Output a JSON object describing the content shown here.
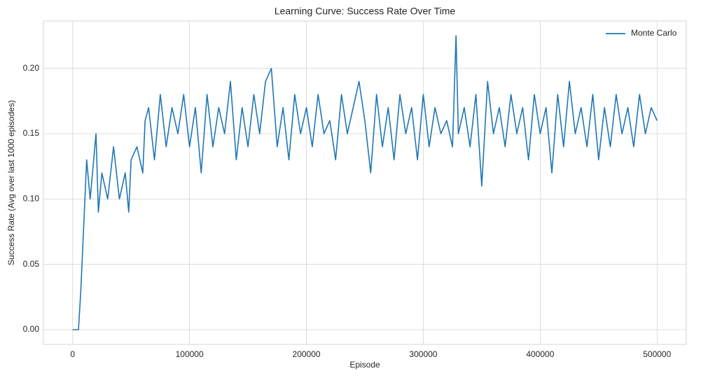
{
  "chart_data": {
    "type": "line",
    "title": "Learning Curve: Success Rate Over Time",
    "xlabel": "Episode",
    "ylabel": "Success Rate (Avg over last 1000 episodes)",
    "x": [
      0,
      5000,
      7000,
      10000,
      12000,
      15000,
      20000,
      22000,
      25000,
      30000,
      35000,
      40000,
      45000,
      48000,
      50000,
      55000,
      60000,
      62000,
      65000,
      70000,
      75000,
      80000,
      85000,
      90000,
      95000,
      100000,
      105000,
      110000,
      115000,
      120000,
      125000,
      130000,
      135000,
      140000,
      145000,
      150000,
      155000,
      160000,
      165000,
      170000,
      175000,
      180000,
      185000,
      190000,
      195000,
      200000,
      205000,
      210000,
      215000,
      220000,
      225000,
      230000,
      235000,
      240000,
      245000,
      250000,
      255000,
      260000,
      265000,
      270000,
      275000,
      280000,
      285000,
      290000,
      295000,
      300000,
      305000,
      310000,
      315000,
      320000,
      325000,
      328000,
      330000,
      335000,
      340000,
      345000,
      350000,
      355000,
      360000,
      365000,
      370000,
      375000,
      380000,
      385000,
      390000,
      395000,
      400000,
      405000,
      410000,
      415000,
      420000,
      425000,
      430000,
      435000,
      440000,
      445000,
      450000,
      455000,
      460000,
      465000,
      470000,
      475000,
      480000,
      485000,
      490000,
      495000,
      500000
    ],
    "series": [
      {
        "name": "Monte Carlo",
        "color": "#1f77b4",
        "values": [
          0,
          0,
          0.03,
          0.09,
          0.13,
          0.1,
          0.15,
          0.09,
          0.12,
          0.1,
          0.14,
          0.1,
          0.12,
          0.09,
          0.13,
          0.14,
          0.12,
          0.16,
          0.17,
          0.13,
          0.18,
          0.14,
          0.17,
          0.15,
          0.18,
          0.14,
          0.17,
          0.12,
          0.18,
          0.14,
          0.17,
          0.15,
          0.19,
          0.13,
          0.17,
          0.14,
          0.18,
          0.15,
          0.19,
          0.2,
          0.14,
          0.17,
          0.13,
          0.18,
          0.15,
          0.17,
          0.14,
          0.18,
          0.15,
          0.16,
          0.13,
          0.18,
          0.15,
          0.17,
          0.19,
          0.16,
          0.12,
          0.18,
          0.14,
          0.17,
          0.13,
          0.18,
          0.15,
          0.17,
          0.13,
          0.18,
          0.14,
          0.17,
          0.15,
          0.16,
          0.14,
          0.225,
          0.15,
          0.17,
          0.14,
          0.18,
          0.11,
          0.19,
          0.15,
          0.17,
          0.14,
          0.18,
          0.15,
          0.17,
          0.13,
          0.18,
          0.15,
          0.17,
          0.12,
          0.18,
          0.14,
          0.19,
          0.15,
          0.17,
          0.14,
          0.18,
          0.13,
          0.17,
          0.14,
          0.18,
          0.15,
          0.17,
          0.14,
          0.18,
          0.15,
          0.17,
          0.16
        ]
      }
    ],
    "xlim": [
      -25000,
      525000
    ],
    "ylim": [
      -0.01125,
      0.23625
    ],
    "xticks": [
      0,
      100000,
      200000,
      300000,
      400000,
      500000
    ],
    "yticks": [
      {
        "value": 0,
        "label": "0.00"
      },
      0.05,
      {
        "value": 0.1,
        "label": "0.10"
      },
      0.15,
      {
        "value": 0.2,
        "label": "0.20"
      }
    ],
    "grid": true,
    "legend": "upper right"
  }
}
